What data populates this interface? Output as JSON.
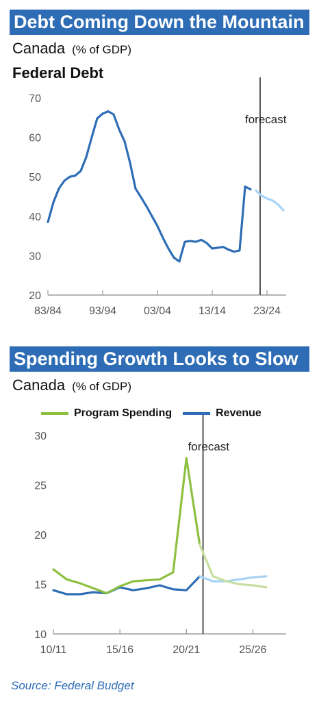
{
  "chart1": {
    "banner": "Debt Coming Down the Mountain",
    "subtitle": "Canada",
    "unit": "(% of GDP)",
    "panel_title": "Federal Debt",
    "forecast_label": "forecast",
    "colors": {
      "actual": "#2e6db5",
      "forecast": "#a7d3f5"
    }
  },
  "chart2": {
    "banner": "Spending Growth Looks to Slow",
    "subtitle": "Canada",
    "unit": "(% of GDP)",
    "forecast_label": "forecast",
    "colors": {
      "program_spending": "#8dc041",
      "program_spending_forecast": "#c6df9e",
      "revenue": "#2e6db5",
      "revenue_forecast": "#a7d3f5"
    }
  },
  "source": "Source: Federal Budget",
  "chart_data": [
    {
      "type": "line",
      "title": "Federal Debt",
      "ylim": [
        20,
        70
      ],
      "yticks": [
        20,
        30,
        40,
        50,
        60,
        70
      ],
      "xlim": [
        1983,
        2026.5
      ],
      "xticks": [
        {
          "x": 1983,
          "label": "83/84"
        },
        {
          "x": 1993,
          "label": "93/94"
        },
        {
          "x": 2003,
          "label": "03/04"
        },
        {
          "x": 2013,
          "label": "13/14"
        },
        {
          "x": 2023,
          "label": "23/24"
        }
      ],
      "forecast_start": 2021.75,
      "series": [
        {
          "role": "actual",
          "x": [
            1983,
            1984,
            1985,
            1986,
            1987,
            1988,
            1989,
            1990,
            1991,
            1992,
            1993,
            1994,
            1995,
            1996,
            1997,
            1998,
            1999,
            2000,
            2001,
            2002,
            2003,
            2004,
            2005,
            2006,
            2007,
            2008,
            2009,
            2010,
            2011,
            2012,
            2013,
            2014,
            2015,
            2016,
            2017,
            2018,
            2019,
            2020
          ],
          "y": [
            38.5,
            43.5,
            47.0,
            49.0,
            50.0,
            50.3,
            51.5,
            55.0,
            60.0,
            64.8,
            66.0,
            66.6,
            65.8,
            62.0,
            59.0,
            53.5,
            47.0,
            44.8,
            42.5,
            40.0,
            37.5,
            34.5,
            31.8,
            29.5,
            28.5,
            33.5,
            33.7,
            33.5,
            34.0,
            33.2,
            31.8,
            32.0,
            32.2,
            31.5,
            31.0,
            31.3,
            47.5,
            46.8
          ]
        },
        {
          "role": "forecast",
          "x": [
            2021,
            2022,
            2023,
            2024,
            2025,
            2026
          ],
          "y": [
            46.5,
            45.2,
            44.5,
            44.0,
            43.0,
            41.5
          ]
        }
      ]
    },
    {
      "type": "line",
      "ylim": [
        10,
        30
      ],
      "yticks": [
        10,
        15,
        20,
        25,
        30
      ],
      "xlim": [
        2010,
        2027.5
      ],
      "xticks": [
        {
          "x": 2010,
          "label": "10/11"
        },
        {
          "x": 2015,
          "label": "15/16"
        },
        {
          "x": 2020,
          "label": "20/21"
        },
        {
          "x": 2025,
          "label": "25/26"
        }
      ],
      "forecast_start": 2021.25,
      "series": [
        {
          "name": "Program Spending",
          "x": [
            2010,
            2011,
            2012,
            2013,
            2014,
            2015,
            2016,
            2017,
            2018,
            2019,
            2020,
            2021
          ],
          "y": [
            16.5,
            15.5,
            15.1,
            14.6,
            14.1,
            14.8,
            15.3,
            15.4,
            15.5,
            16.2,
            27.7,
            19.0
          ],
          "forecast_x": [
            2021,
            2022,
            2023,
            2024,
            2025,
            2026
          ],
          "forecast_y": [
            19.0,
            15.8,
            15.3,
            15.0,
            14.9,
            14.7
          ]
        },
        {
          "name": "Revenue",
          "x": [
            2010,
            2011,
            2012,
            2013,
            2014,
            2015,
            2016,
            2017,
            2018,
            2019,
            2020,
            2021
          ],
          "y": [
            14.4,
            14.0,
            14.0,
            14.2,
            14.1,
            14.7,
            14.4,
            14.6,
            14.9,
            14.5,
            14.4,
            15.8
          ],
          "forecast_x": [
            2021,
            2022,
            2023,
            2024,
            2025,
            2026
          ],
          "forecast_y": [
            15.8,
            15.3,
            15.3,
            15.5,
            15.7,
            15.8
          ]
        }
      ]
    }
  ]
}
